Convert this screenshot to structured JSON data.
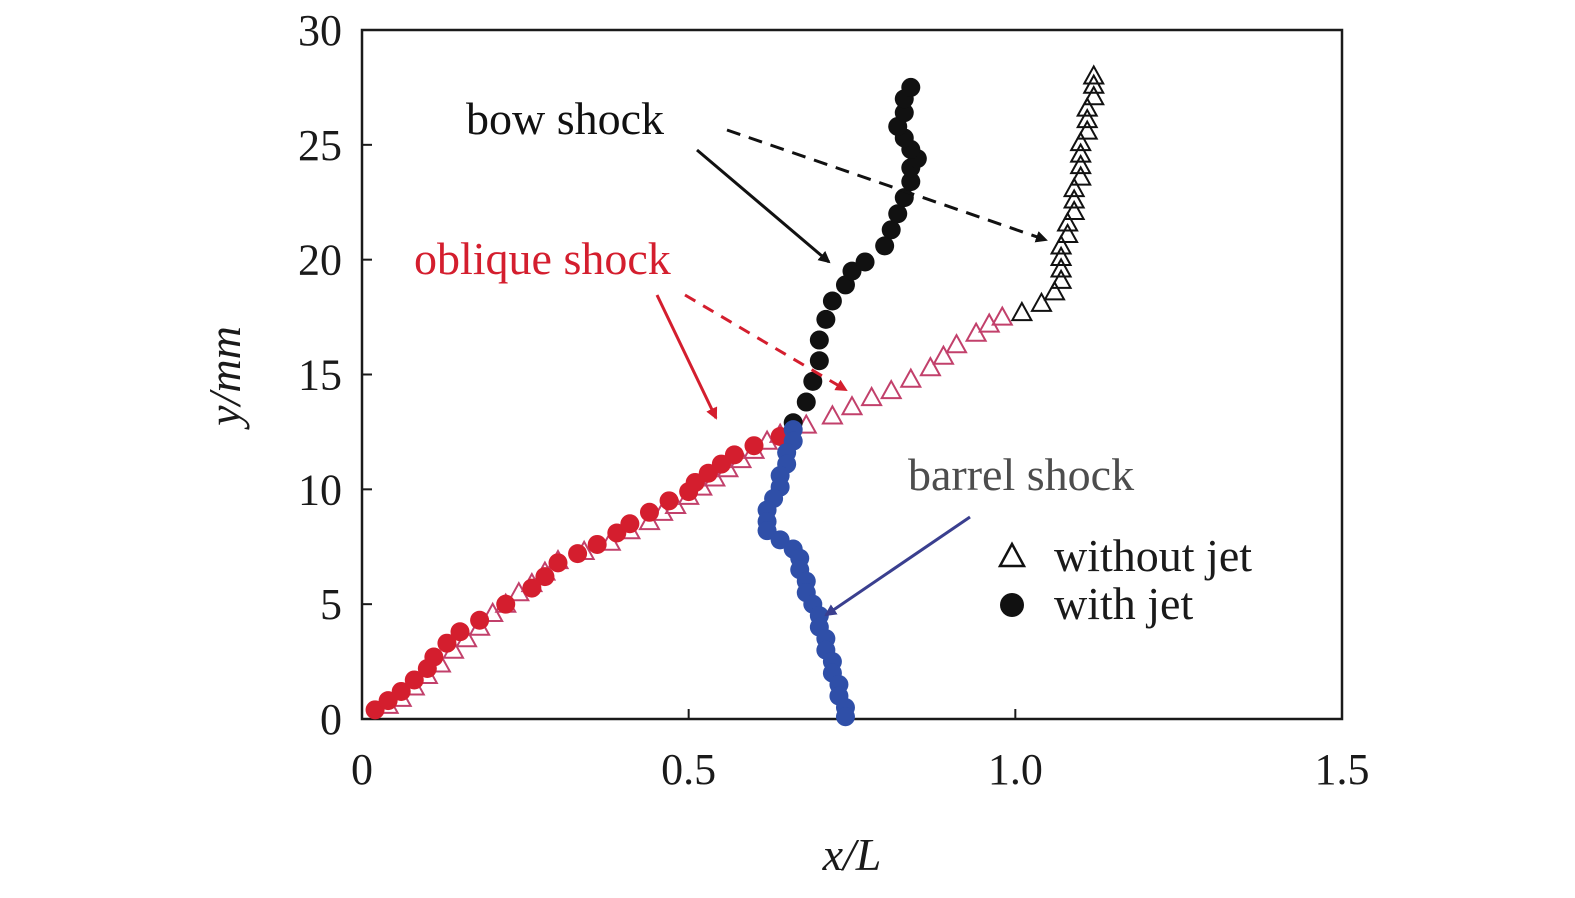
{
  "chart_data": {
    "type": "scatter",
    "xlabel": "x/L",
    "ylabel": "y/mm",
    "xlim": [
      0,
      1.5
    ],
    "ylim": [
      0,
      30
    ],
    "x_ticks": [
      {
        "value": 0,
        "label": "0"
      },
      {
        "value": 0.5,
        "label": "0.5"
      },
      {
        "value": 1.0,
        "label": "1.0"
      },
      {
        "value": 1.5,
        "label": "1.5"
      }
    ],
    "y_ticks": [
      {
        "value": 0,
        "label": "0"
      },
      {
        "value": 5,
        "label": "5"
      },
      {
        "value": 10,
        "label": "10"
      },
      {
        "value": 15,
        "label": "15"
      },
      {
        "value": 20,
        "label": "20"
      },
      {
        "value": 25,
        "label": "25"
      },
      {
        "value": 30,
        "label": "30"
      }
    ],
    "grid": false,
    "legend_position": "right",
    "legend": [
      {
        "label": "without jet",
        "marker": "open-triangle"
      },
      {
        "label": "with jet",
        "marker": "filled-circle"
      }
    ],
    "annotations": [
      {
        "text": "bow shock",
        "color": "#111111"
      },
      {
        "text": "oblique shock",
        "color": "#d41e2e"
      },
      {
        "text": "barrel shock",
        "color": "#4d4d4d"
      }
    ],
    "colors": {
      "oblique": "#d41e2e",
      "oblique_open": "#c2406b",
      "bow": "#111111",
      "barrel": "#2f4fa8",
      "barrel_arrow": "#3a3f8f"
    },
    "series": [
      {
        "marker": "open-triangle",
        "segment": "oblique shock",
        "color": "#c2406b",
        "points": [
          [
            0.04,
            0.6
          ],
          [
            0.06,
            0.9
          ],
          [
            0.08,
            1.4
          ],
          [
            0.1,
            1.9
          ],
          [
            0.12,
            2.4
          ],
          [
            0.14,
            3.0
          ],
          [
            0.16,
            3.5
          ],
          [
            0.18,
            4.0
          ],
          [
            0.2,
            4.6
          ],
          [
            0.22,
            5.0
          ],
          [
            0.24,
            5.5
          ],
          [
            0.26,
            5.9
          ],
          [
            0.28,
            6.4
          ],
          [
            0.3,
            6.9
          ],
          [
            0.34,
            7.3
          ],
          [
            0.38,
            7.7
          ],
          [
            0.41,
            8.2
          ],
          [
            0.44,
            8.6
          ],
          [
            0.46,
            9.0
          ],
          [
            0.48,
            9.3
          ],
          [
            0.5,
            9.7
          ],
          [
            0.52,
            10.1
          ],
          [
            0.54,
            10.5
          ],
          [
            0.56,
            10.9
          ],
          [
            0.58,
            11.3
          ],
          [
            0.6,
            11.7
          ],
          [
            0.62,
            12.1
          ],
          [
            0.64,
            12.4
          ],
          [
            0.68,
            12.8
          ],
          [
            0.72,
            13.2
          ],
          [
            0.75,
            13.6
          ],
          [
            0.78,
            14.0
          ],
          [
            0.81,
            14.3
          ],
          [
            0.84,
            14.8
          ],
          [
            0.87,
            15.3
          ],
          [
            0.89,
            15.8
          ],
          [
            0.91,
            16.3
          ],
          [
            0.94,
            16.8
          ],
          [
            0.96,
            17.2
          ],
          [
            0.98,
            17.5
          ]
        ]
      },
      {
        "marker": "open-triangle",
        "segment": "bow shock",
        "color": "#111111",
        "points": [
          [
            1.01,
            17.7
          ],
          [
            1.04,
            18.1
          ],
          [
            1.06,
            18.6
          ],
          [
            1.07,
            19.1
          ],
          [
            1.07,
            19.6
          ],
          [
            1.07,
            20.1
          ],
          [
            1.07,
            20.6
          ],
          [
            1.08,
            21.1
          ],
          [
            1.08,
            21.6
          ],
          [
            1.09,
            22.1
          ],
          [
            1.09,
            22.6
          ],
          [
            1.09,
            23.1
          ],
          [
            1.1,
            23.6
          ],
          [
            1.1,
            24.1
          ],
          [
            1.1,
            24.6
          ],
          [
            1.1,
            25.1
          ],
          [
            1.11,
            25.6
          ],
          [
            1.11,
            26.1
          ],
          [
            1.11,
            26.6
          ],
          [
            1.12,
            27.1
          ],
          [
            1.12,
            27.6
          ],
          [
            1.12,
            28.0
          ]
        ]
      },
      {
        "marker": "filled-circle",
        "segment": "oblique shock",
        "color": "#d41e2e",
        "points": [
          [
            0.02,
            0.4
          ],
          [
            0.04,
            0.8
          ],
          [
            0.06,
            1.2
          ],
          [
            0.08,
            1.7
          ],
          [
            0.1,
            2.2
          ],
          [
            0.11,
            2.7
          ],
          [
            0.13,
            3.3
          ],
          [
            0.15,
            3.8
          ],
          [
            0.18,
            4.3
          ],
          [
            0.22,
            5.0
          ],
          [
            0.26,
            5.7
          ],
          [
            0.28,
            6.2
          ],
          [
            0.3,
            6.8
          ],
          [
            0.33,
            7.2
          ],
          [
            0.36,
            7.6
          ],
          [
            0.39,
            8.1
          ],
          [
            0.41,
            8.5
          ],
          [
            0.44,
            9.0
          ],
          [
            0.47,
            9.5
          ],
          [
            0.5,
            9.9
          ],
          [
            0.51,
            10.3
          ],
          [
            0.53,
            10.7
          ],
          [
            0.55,
            11.1
          ],
          [
            0.57,
            11.5
          ],
          [
            0.6,
            11.9
          ],
          [
            0.64,
            12.3
          ]
        ]
      },
      {
        "marker": "filled-circle",
        "segment": "bow shock",
        "color": "#111111",
        "points": [
          [
            0.66,
            12.9
          ],
          [
            0.68,
            13.8
          ],
          [
            0.69,
            14.7
          ],
          [
            0.7,
            15.6
          ],
          [
            0.7,
            16.5
          ],
          [
            0.71,
            17.4
          ],
          [
            0.72,
            18.2
          ],
          [
            0.74,
            18.9
          ],
          [
            0.75,
            19.5
          ],
          [
            0.77,
            19.9
          ],
          [
            0.8,
            20.6
          ],
          [
            0.81,
            21.3
          ],
          [
            0.82,
            22.0
          ],
          [
            0.83,
            22.7
          ],
          [
            0.84,
            23.4
          ],
          [
            0.84,
            24.0
          ],
          [
            0.85,
            24.4
          ],
          [
            0.84,
            24.8
          ],
          [
            0.83,
            25.3
          ],
          [
            0.82,
            25.8
          ],
          [
            0.83,
            26.4
          ],
          [
            0.83,
            27.0
          ],
          [
            0.84,
            27.5
          ]
        ]
      },
      {
        "marker": "filled-circle",
        "segment": "barrel shock",
        "color": "#2f4fa8",
        "points": [
          [
            0.66,
            12.6
          ],
          [
            0.66,
            12.1
          ],
          [
            0.65,
            11.6
          ],
          [
            0.65,
            11.1
          ],
          [
            0.64,
            10.6
          ],
          [
            0.64,
            10.1
          ],
          [
            0.63,
            9.6
          ],
          [
            0.62,
            9.1
          ],
          [
            0.62,
            8.6
          ],
          [
            0.62,
            8.2
          ],
          [
            0.64,
            7.8
          ],
          [
            0.66,
            7.4
          ],
          [
            0.67,
            7.0
          ],
          [
            0.67,
            6.5
          ],
          [
            0.68,
            6.0
          ],
          [
            0.68,
            5.5
          ],
          [
            0.69,
            5.0
          ],
          [
            0.7,
            4.5
          ],
          [
            0.7,
            4.0
          ],
          [
            0.71,
            3.5
          ],
          [
            0.71,
            3.0
          ],
          [
            0.72,
            2.5
          ],
          [
            0.72,
            2.0
          ],
          [
            0.73,
            1.5
          ],
          [
            0.73,
            1.0
          ],
          [
            0.74,
            0.5
          ],
          [
            0.74,
            0.1
          ]
        ]
      }
    ]
  }
}
